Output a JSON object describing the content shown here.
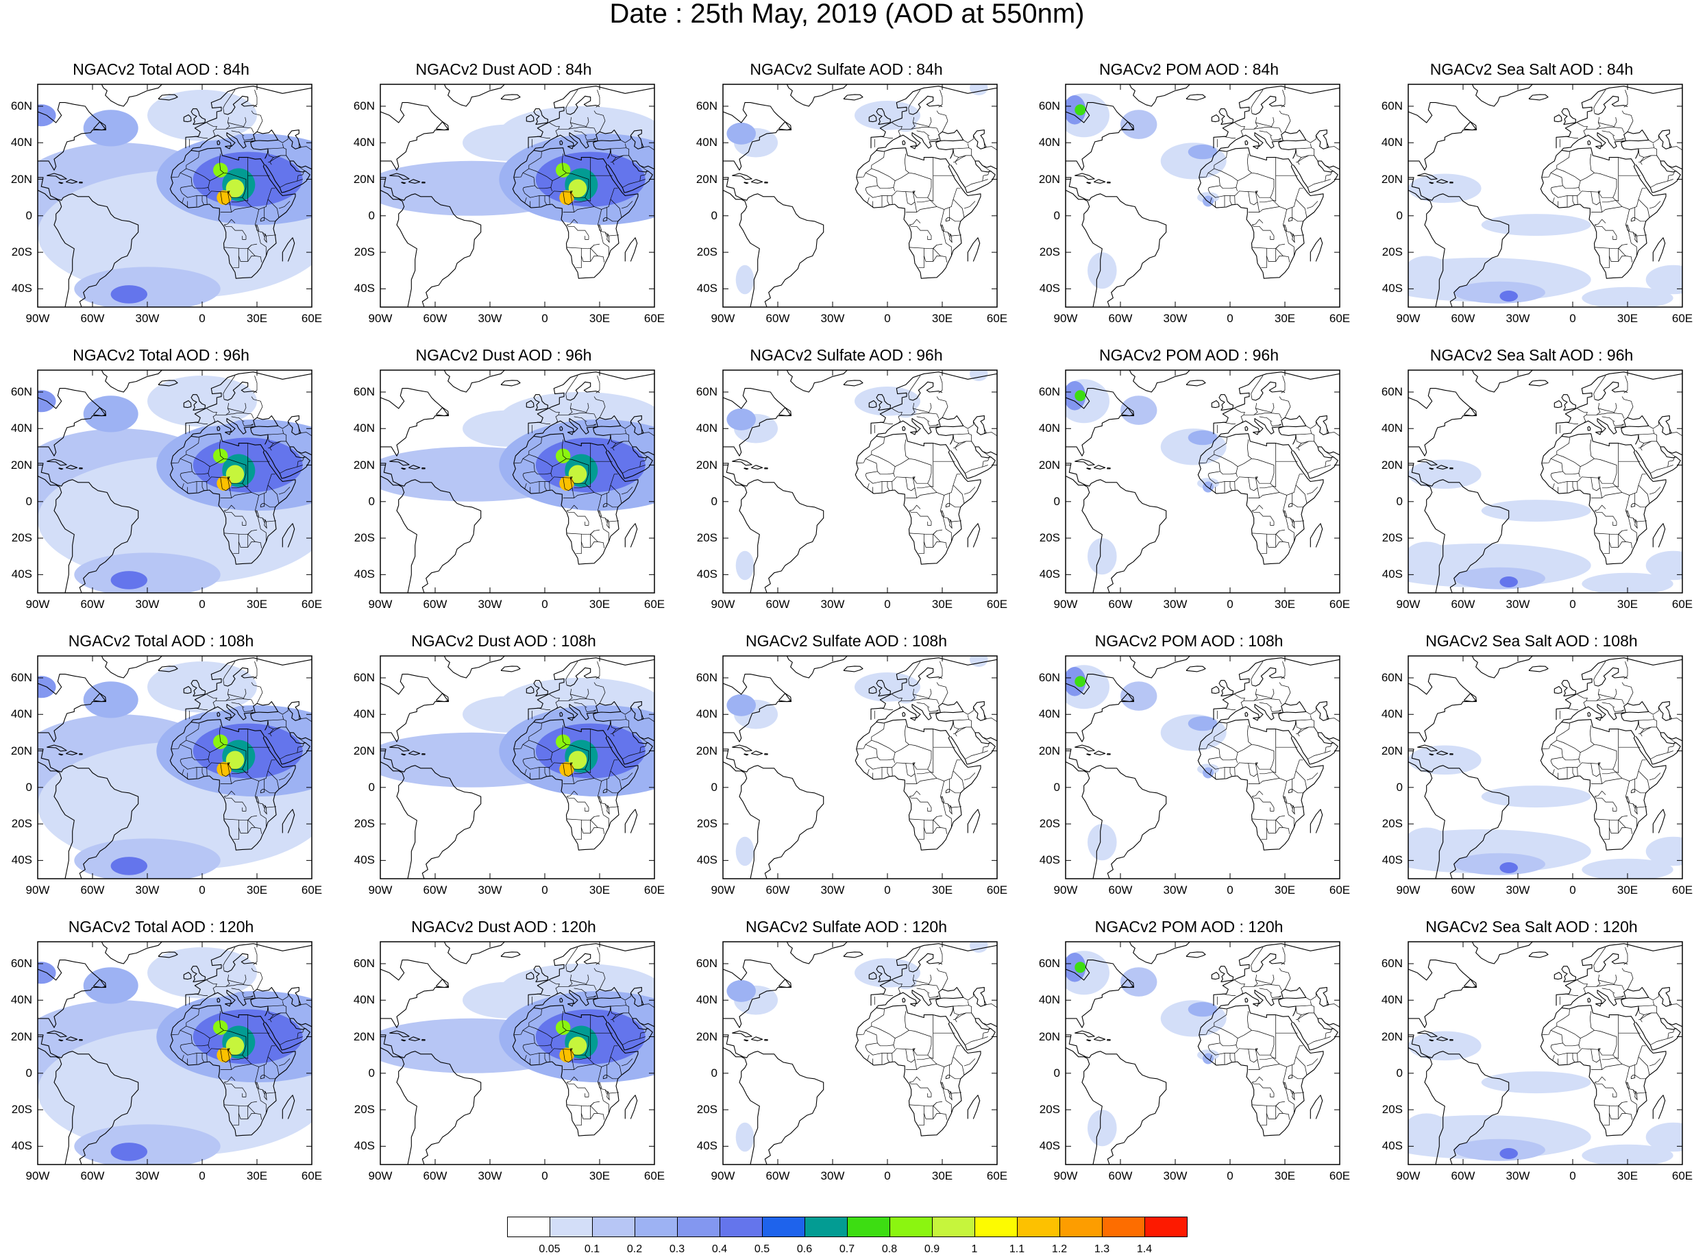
{
  "title": "Date : 25th May, 2019 (AOD at 550nm)",
  "lat_labels": [
    "60N",
    "40N",
    "20N",
    "0",
    "20S",
    "40S"
  ],
  "lon_labels": [
    "90W",
    "60W",
    "30W",
    "0",
    "30E",
    "60E"
  ],
  "panels": [
    {
      "title": "NGACv2 Total AOD : 84h",
      "species": "total",
      "lead_hours": 84
    },
    {
      "title": "NGACv2 Dust AOD : 84h",
      "species": "dust",
      "lead_hours": 84
    },
    {
      "title": "NGACv2 Sulfate AOD : 84h",
      "species": "sulfate",
      "lead_hours": 84
    },
    {
      "title": "NGACv2 POM AOD : 84h",
      "species": "pom",
      "lead_hours": 84
    },
    {
      "title": "NGACv2 Sea Salt AOD : 84h",
      "species": "seasalt",
      "lead_hours": 84
    },
    {
      "title": "NGACv2 Total AOD : 96h",
      "species": "total",
      "lead_hours": 96
    },
    {
      "title": "NGACv2 Dust AOD : 96h",
      "species": "dust",
      "lead_hours": 96
    },
    {
      "title": "NGACv2 Sulfate AOD : 96h",
      "species": "sulfate",
      "lead_hours": 96
    },
    {
      "title": "NGACv2 POM AOD : 96h",
      "species": "pom",
      "lead_hours": 96
    },
    {
      "title": "NGACv2 Sea Salt AOD : 96h",
      "species": "seasalt",
      "lead_hours": 96
    },
    {
      "title": "NGACv2 Total AOD : 108h",
      "species": "total",
      "lead_hours": 108
    },
    {
      "title": "NGACv2 Dust AOD : 108h",
      "species": "dust",
      "lead_hours": 108
    },
    {
      "title": "NGACv2 Sulfate AOD : 108h",
      "species": "sulfate",
      "lead_hours": 108
    },
    {
      "title": "NGACv2 POM AOD : 108h",
      "species": "pom",
      "lead_hours": 108
    },
    {
      "title": "NGACv2 Sea Salt AOD : 108h",
      "species": "seasalt",
      "lead_hours": 108
    },
    {
      "title": "NGACv2 Total AOD : 120h",
      "species": "total",
      "lead_hours": 120
    },
    {
      "title": "NGACv2 Dust AOD : 120h",
      "species": "dust",
      "lead_hours": 120
    },
    {
      "title": "NGACv2 Sulfate AOD : 120h",
      "species": "sulfate",
      "lead_hours": 120
    },
    {
      "title": "NGACv2 POM AOD : 120h",
      "species": "pom",
      "lead_hours": 120
    },
    {
      "title": "NGACv2 Sea Salt  AOD : 120h",
      "species": "seasalt",
      "lead_hours": 120
    }
  ],
  "colorbar": {
    "labels": [
      "0.05",
      "0.1",
      "0.2",
      "0.3",
      "0.4",
      "0.5",
      "0.6",
      "0.7",
      "0.8",
      "0.9",
      "1",
      "1.1",
      "1.2",
      "1.3",
      "1.4"
    ],
    "colors": [
      "#ffffff",
      "#d3def8",
      "#b7c6f5",
      "#9db2f3",
      "#8397f0",
      "#6475ec",
      "#1e63ec",
      "#039c93",
      "#3ddd12",
      "#8bf510",
      "#c6f53c",
      "#fdfb00",
      "#fdc100",
      "#fd9d00",
      "#fd6d00",
      "#fd1a00"
    ]
  }
}
